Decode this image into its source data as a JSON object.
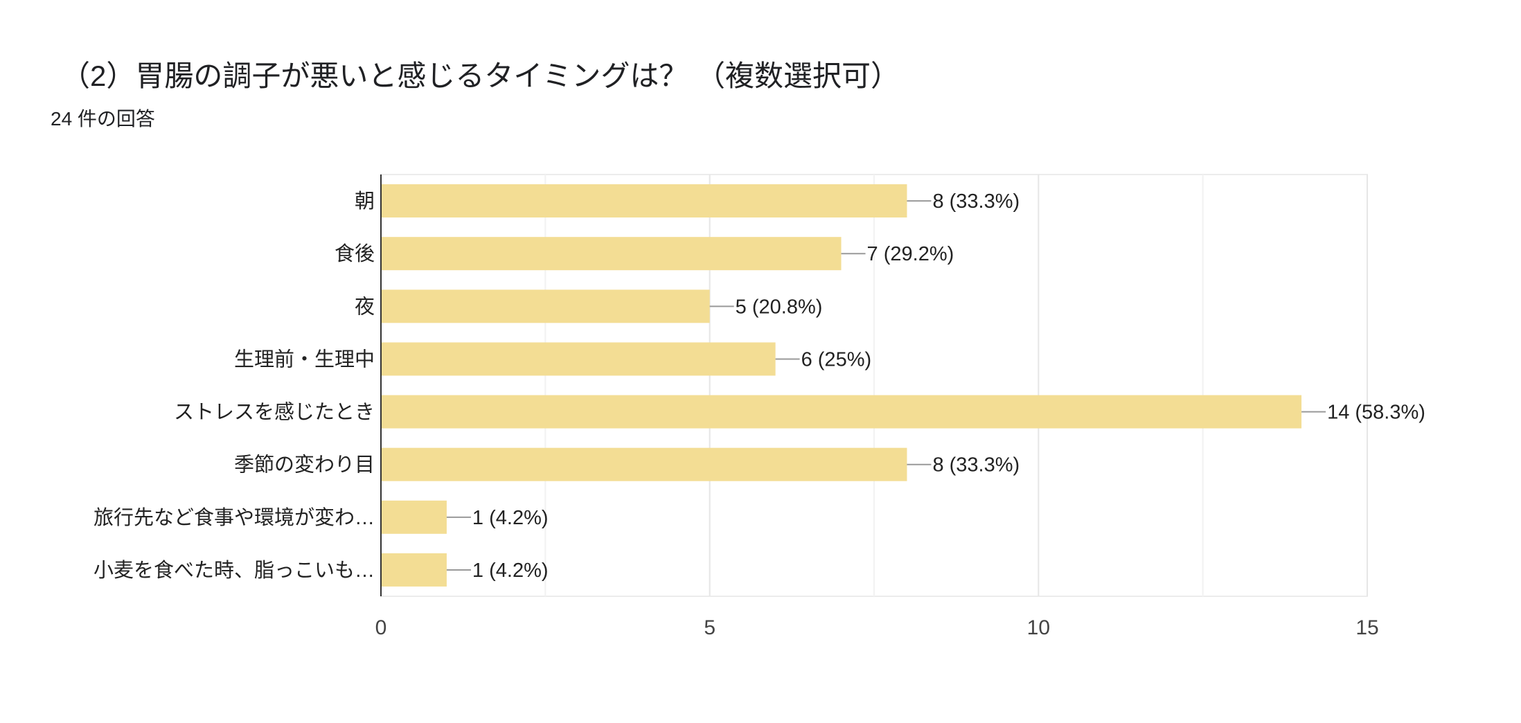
{
  "header": {
    "title": "（2）胃腸の調子が悪いと感じるタイミングは？ （複数選択可）",
    "response_count": "24 件の回答"
  },
  "chart_data": {
    "type": "bar",
    "orientation": "horizontal",
    "categories": [
      "朝",
      "食後",
      "夜",
      "生理前・生理中",
      "ストレスを感じたとき",
      "季節の変わり目",
      "旅行先など食事や環境が変わ…",
      "小麦を食べた時、脂っこいも…"
    ],
    "values": [
      8,
      7,
      5,
      6,
      14,
      8,
      1,
      1
    ],
    "data_labels": [
      "8 (33.3%)",
      "7 (29.2%)",
      "5 (20.8%)",
      "6 (25%)",
      "14 (58.3%)",
      "8 (33.3%)",
      "1 (4.2%)",
      "1 (4.2%)"
    ],
    "xlim": [
      0,
      15
    ],
    "x_ticks": [
      0,
      5,
      10,
      15
    ],
    "grid": true,
    "bar_color": "#f3dd94",
    "xlabel": "",
    "ylabel": ""
  }
}
